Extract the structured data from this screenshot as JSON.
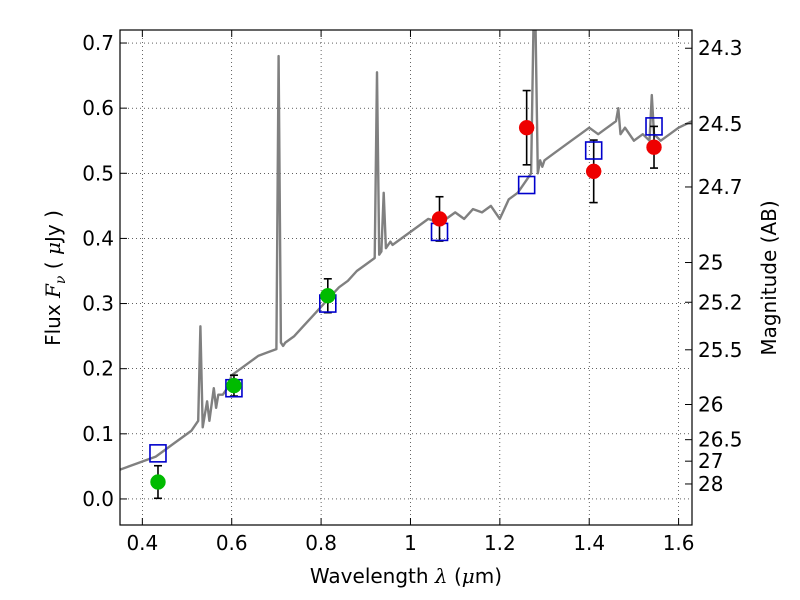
{
  "chart_data": {
    "type": "line",
    "xlabel": {
      "prefix": "Wavelength  ",
      "symbol": "λ",
      "unit_open": " (",
      "unit_symbol": "μ",
      "unit_rest": "m)"
    },
    "ylabel": {
      "prefix": "Flux  ",
      "symbol": "F",
      "subscript": "ν",
      "unit_open": "  ( ",
      "unit_symbol": "μ",
      "unit_rest": "Jy )"
    },
    "y2label": "Magnitude (AB)",
    "xlim": [
      0.35,
      1.63
    ],
    "ylim": [
      -0.04,
      0.72
    ],
    "grid": true,
    "x_ticks": [
      0.4,
      0.6,
      0.8,
      1.0,
      1.2,
      1.4,
      1.6
    ],
    "x_tick_labels": [
      "0.4",
      "0.6",
      "0.8",
      "1",
      "1.2",
      "1.4",
      "1.6"
    ],
    "y_ticks": [
      0.0,
      0.1,
      0.2,
      0.3,
      0.4,
      0.5,
      0.6,
      0.7
    ],
    "y_tick_labels": [
      "0.0",
      "0.1",
      "0.2",
      "0.3",
      "0.4",
      "0.5",
      "0.6",
      "0.7"
    ],
    "y2_ticks": [
      {
        "label": "24.3",
        "flux": 0.692
      },
      {
        "label": "24.5",
        "flux": 0.576
      },
      {
        "label": "24.7",
        "flux": 0.479
      },
      {
        "label": "25",
        "flux": 0.363
      },
      {
        "label": "25.2",
        "flux": 0.302
      },
      {
        "label": "25.5",
        "flux": 0.229
      },
      {
        "label": "26",
        "flux": 0.145
      },
      {
        "label": "26.5",
        "flux": 0.091
      },
      {
        "label": "27",
        "flux": 0.058
      },
      {
        "label": "28",
        "flux": 0.023
      }
    ],
    "spectrum": {
      "color": "#808080",
      "x": [
        0.35,
        0.37,
        0.39,
        0.41,
        0.43,
        0.45,
        0.47,
        0.49,
        0.51,
        0.525,
        0.53,
        0.535,
        0.54,
        0.545,
        0.55,
        0.56,
        0.565,
        0.57,
        0.58,
        0.59,
        0.6,
        0.62,
        0.64,
        0.66,
        0.68,
        0.7,
        0.705,
        0.71,
        0.715,
        0.72,
        0.74,
        0.76,
        0.78,
        0.8,
        0.82,
        0.84,
        0.86,
        0.88,
        0.9,
        0.92,
        0.925,
        0.93,
        0.935,
        0.94,
        0.945,
        0.95,
        0.955,
        0.96,
        0.98,
        1.0,
        1.02,
        1.04,
        1.06,
        1.08,
        1.1,
        1.12,
        1.14,
        1.16,
        1.18,
        1.2,
        1.22,
        1.24,
        1.26,
        1.27,
        1.275,
        1.28,
        1.285,
        1.29,
        1.295,
        1.3,
        1.32,
        1.34,
        1.36,
        1.38,
        1.4,
        1.42,
        1.44,
        1.46,
        1.465,
        1.47,
        1.48,
        1.5,
        1.52,
        1.535,
        1.54,
        1.545,
        1.56,
        1.58,
        1.6,
        1.63
      ],
      "y": [
        0.045,
        0.05,
        0.055,
        0.06,
        0.065,
        0.075,
        0.085,
        0.095,
        0.105,
        0.12,
        0.265,
        0.11,
        0.13,
        0.15,
        0.12,
        0.17,
        0.14,
        0.16,
        0.16,
        0.17,
        0.19,
        0.2,
        0.21,
        0.22,
        0.225,
        0.23,
        0.68,
        0.24,
        0.235,
        0.24,
        0.25,
        0.265,
        0.28,
        0.295,
        0.31,
        0.325,
        0.335,
        0.35,
        0.36,
        0.37,
        0.655,
        0.375,
        0.38,
        0.47,
        0.385,
        0.39,
        0.395,
        0.39,
        0.4,
        0.41,
        0.42,
        0.43,
        0.425,
        0.43,
        0.44,
        0.43,
        0.445,
        0.44,
        0.45,
        0.43,
        0.46,
        0.47,
        0.49,
        0.5,
        0.72,
        0.72,
        0.5,
        0.52,
        0.51,
        0.52,
        0.53,
        0.54,
        0.55,
        0.56,
        0.57,
        0.56,
        0.57,
        0.58,
        0.6,
        0.56,
        0.57,
        0.55,
        0.56,
        0.55,
        0.62,
        0.56,
        0.55,
        0.56,
        0.57,
        0.58
      ]
    },
    "model_points": {
      "color": "#0000cc",
      "marker": "open-square",
      "x": [
        0.435,
        0.605,
        0.815,
        1.065,
        1.26,
        1.41,
        1.545
      ],
      "y": [
        0.07,
        0.17,
        0.3,
        0.41,
        0.482,
        0.535,
        0.572
      ]
    },
    "observed_green": {
      "color": "#00bb00",
      "marker": "circle",
      "x": [
        0.435,
        0.605,
        0.815
      ],
      "y": [
        0.026,
        0.174,
        0.312
      ],
      "yerr": [
        0.025,
        0.016,
        0.026
      ]
    },
    "observed_red": {
      "color": "#ee0000",
      "marker": "circle",
      "x": [
        1.065,
        1.26,
        1.41,
        1.545
      ],
      "y": [
        0.43,
        0.57,
        0.503,
        0.54
      ],
      "yerr": [
        0.034,
        0.057,
        0.048,
        0.032
      ]
    }
  }
}
